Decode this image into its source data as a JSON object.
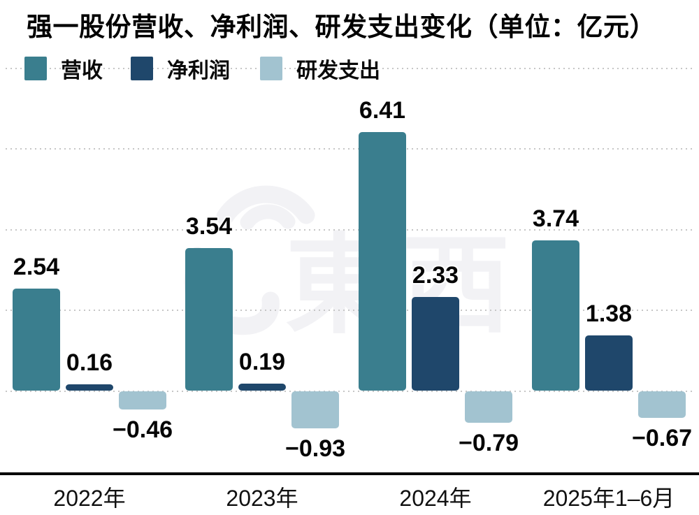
{
  "page": {
    "title": "强一股份营收、净利润、研发支出变化（单位：亿元）"
  },
  "legend": {
    "items": [
      {
        "label": "营收",
        "color": "#3A7E8E"
      },
      {
        "label": "净利润",
        "color": "#1F476B"
      },
      {
        "label": "研发支出",
        "color": "#A2C3D0"
      }
    ]
  },
  "watermark": {
    "text": "東西"
  },
  "chart_data": {
    "type": "bar",
    "title": "强一股份营收、净利润、研发支出变化",
    "unit_label": "单位：亿元",
    "categories": [
      "2022年",
      "2023年",
      "2024年",
      "2025年1–6月"
    ],
    "series": [
      {
        "name": "营收",
        "key": "revenue",
        "color": "#3A7E8E",
        "values": [
          2.54,
          3.54,
          6.41,
          3.74
        ],
        "labels": [
          "2.54",
          "3.54",
          "6.41",
          "3.74"
        ]
      },
      {
        "name": "净利润",
        "key": "net-profit",
        "color": "#1F476B",
        "values": [
          0.16,
          0.19,
          2.33,
          1.38
        ],
        "labels": [
          "0.16",
          "0.19",
          "2.33",
          "1.38"
        ]
      },
      {
        "name": "研发支出",
        "key": "rd-expense",
        "color": "#A2C3D0",
        "values": [
          -0.46,
          -0.93,
          -0.79,
          -0.67
        ],
        "labels": [
          "−0.46",
          "−0.93",
          "−0.79",
          "−0.67"
        ]
      }
    ],
    "ylim": [
      -2,
      8
    ],
    "gridline_step": 2,
    "grid": "dotted-horizontal",
    "legend_position": "top-left",
    "colors": {
      "grid": "#C6C6C6",
      "axis": "#000000",
      "value_label": "#050505",
      "watermark": "#F2F2F5"
    }
  }
}
